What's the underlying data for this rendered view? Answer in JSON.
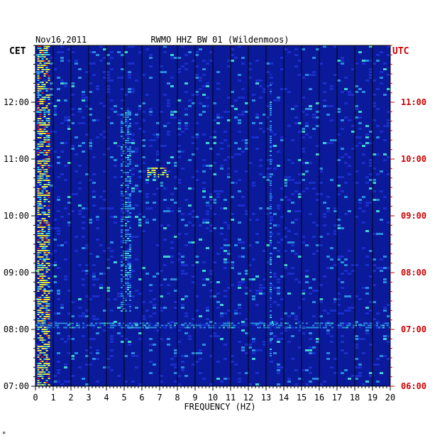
{
  "chart_data": {
    "type": "heatmap",
    "date": "Nov16,2011",
    "title": "RWMO HHZ BW 01 (Wildenmoos)",
    "left_axis_label": "CET",
    "right_axis_label": "UTC",
    "xlabel": "FREQUENCY (HZ)",
    "xlim": [
      0,
      20
    ],
    "x_ticks": [
      "0",
      "1",
      "2",
      "3",
      "4",
      "5",
      "6",
      "7",
      "8",
      "9",
      "10",
      "11",
      "12",
      "13",
      "14",
      "15",
      "16",
      "17",
      "18",
      "19",
      "20"
    ],
    "left_time_range": [
      "07:00",
      "13:00"
    ],
    "left_ticks": [
      "07:00",
      "08:00",
      "09:00",
      "10:00",
      "11:00",
      "12:00"
    ],
    "right_ticks": [
      "06:00",
      "07:00",
      "08:00",
      "09:00",
      "10:00",
      "11:00"
    ],
    "grid": true,
    "colors": {
      "background": "#0a1a9a",
      "low": "#1a2ecc",
      "mid": "#2a8ae0",
      "high": "#f0e830",
      "peak": "#e02010",
      "grid": "#000000",
      "utc_text": "#cc0000"
    },
    "features": [
      {
        "hz": [
          0.1,
          0.8
        ],
        "time": [
          7.0,
          13.0
        ],
        "intensity": "high"
      },
      {
        "hz": [
          0.0,
          20.0
        ],
        "time": [
          8.02,
          8.12
        ],
        "intensity": "mid"
      },
      {
        "hz": [
          13.2,
          13.3
        ],
        "time": [
          7.4,
          12.5
        ],
        "intensity": "mid"
      },
      {
        "hz": [
          4.8,
          5.3
        ],
        "time": [
          8.3,
          11.9
        ],
        "intensity": "mid"
      },
      {
        "hz": [
          6.3,
          7.5
        ],
        "time": [
          10.7,
          10.85
        ],
        "intensity": "high"
      }
    ]
  },
  "footer_mark": "*"
}
